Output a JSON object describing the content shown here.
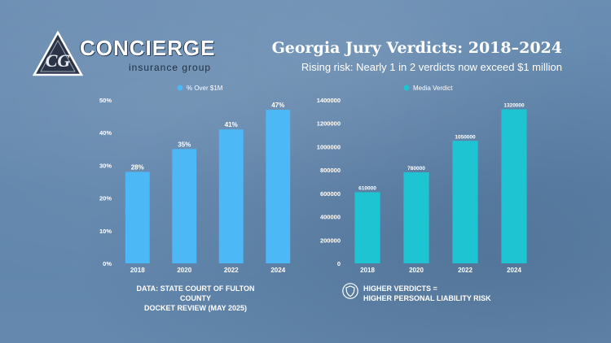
{
  "logo": {
    "name": "CONCIERGE",
    "sub": "insurance group",
    "monogram": "CG"
  },
  "header": {
    "title": "Georgia Jury Verdicts: 2018–2024",
    "subtitle": "Rising risk: Nearly 1 in 2 verdicts now exceed $1 million"
  },
  "notes": {
    "left_line1": "DATA: STATE COURT OF FULTON COUNTY",
    "left_line2": "DOCKET REVIEW (MAY 2025)",
    "right_line1": "HIGHER VERDICTS =",
    "right_line2": "HIGHER PERSONAL LIABILITY RISK",
    "right_icon": "shield-icon"
  },
  "colors": {
    "left_bar": "#4cb8f5",
    "right_bar": "#1ec4d2",
    "text": "#ffffff"
  },
  "chart_data": [
    {
      "type": "bar",
      "categories": [
        "2018",
        "2020",
        "2022",
        "2024"
      ],
      "series": [
        {
          "name": "% Over $1M",
          "values": [
            28,
            35,
            41,
            47
          ]
        }
      ],
      "data_labels": [
        "28%",
        "35%",
        "41%",
        "47%"
      ],
      "yticks": [
        "0%",
        "10%",
        "20%",
        "30%",
        "40%",
        "50%"
      ],
      "ylim": [
        0,
        50
      ],
      "legend": "top-center",
      "grid": false
    },
    {
      "type": "bar",
      "categories": [
        "2018",
        "2020",
        "2022",
        "2024"
      ],
      "series": [
        {
          "name": "Media Verdict",
          "values": [
            610000,
            780000,
            1050000,
            1320000
          ]
        }
      ],
      "data_labels": [
        "610000",
        "780000",
        "1050000",
        "1320000"
      ],
      "yticks": [
        "0",
        "200000",
        "400000",
        "600000",
        "800000",
        "1000000",
        "1200000",
        "1400000"
      ],
      "ylim": [
        0,
        1400000
      ],
      "legend": "top-center",
      "grid": false
    }
  ]
}
